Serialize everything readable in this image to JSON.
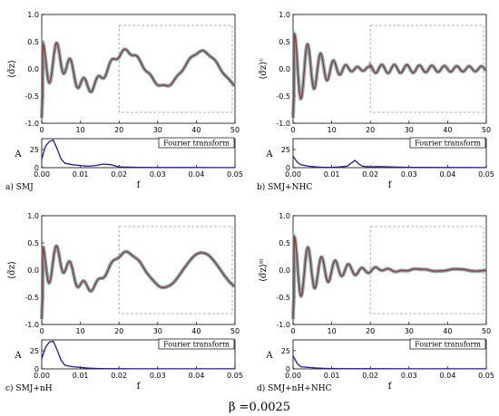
{
  "figure": {
    "beta_label": "β =0.0025",
    "fourier_label": "Fourier transform"
  },
  "chart_data": [
    {
      "type": "line",
      "caption": "a) SMJ",
      "ylabel": "⟨σ̃z⟩",
      "xlabel": "",
      "xlim": [
        0,
        50
      ],
      "ylim": [
        -1.0,
        1.0
      ],
      "xticks": [
        "0",
        "10",
        "20",
        "30",
        "40",
        "50"
      ],
      "yticks": [
        "-1.0",
        "-0.5",
        "0.0",
        "0.5",
        "1.0"
      ],
      "zoom_window": {
        "x": [
          20,
          50
        ],
        "y": [
          -0.8,
          0.8
        ]
      },
      "series": [
        {
          "pattern": "sustained",
          "values": []
        }
      ],
      "fourier": {
        "type": "line",
        "xlabel": "f",
        "ylabel": "A",
        "xlim": [
          0,
          0.05
        ],
        "ylim": [
          0,
          40
        ],
        "xticks": [
          "0.00",
          "0.01",
          "0.02",
          "0.03",
          "0.04",
          "0.05"
        ],
        "yticks": [
          "0",
          "25"
        ],
        "x": [
          0,
          0.001,
          0.002,
          0.003,
          0.004,
          0.005,
          0.006,
          0.008,
          0.01,
          0.012,
          0.014,
          0.016,
          0.018,
          0.02,
          0.025,
          0.03,
          0.035,
          0.04,
          0.045,
          0.05
        ],
        "y": [
          12,
          30,
          36,
          38,
          26,
          12,
          6,
          4,
          3,
          2,
          3,
          5,
          4,
          1,
          0.5,
          0.3,
          0.2,
          0.2,
          0.1,
          0.1
        ]
      }
    },
    {
      "type": "line",
      "caption": "b) SMJ+NHC",
      "ylabel": "⟨σ̃z⟩ᶜ",
      "xlabel": "",
      "xlim": [
        0,
        50
      ],
      "ylim": [
        -1.0,
        1.0
      ],
      "xticks": [
        "0",
        "10",
        "20",
        "30",
        "40",
        "50"
      ],
      "yticks": [
        "-1.0",
        "-0.5",
        "0.0",
        "0.5",
        "1.0"
      ],
      "zoom_window": {
        "x": [
          20,
          50
        ],
        "y": [
          -0.8,
          0.8
        ]
      },
      "series": [
        {
          "pattern": "fast_decay",
          "values": []
        }
      ],
      "fourier": {
        "type": "line",
        "xlabel": "f",
        "ylabel": "A",
        "xlim": [
          0,
          0.05
        ],
        "ylim": [
          0,
          40
        ],
        "xticks": [
          "0.00",
          "0.01",
          "0.02",
          "0.03",
          "0.04",
          "0.05"
        ],
        "yticks": [
          "0",
          "25"
        ],
        "x": [
          0,
          0.001,
          0.002,
          0.004,
          0.006,
          0.008,
          0.01,
          0.012,
          0.014,
          0.015,
          0.016,
          0.017,
          0.018,
          0.02,
          0.022,
          0.025,
          0.03,
          0.04,
          0.05
        ],
        "y": [
          16,
          8,
          4,
          2,
          1,
          0.5,
          0.5,
          1,
          2,
          6,
          10,
          5,
          2,
          1,
          1.5,
          1,
          0.5,
          0.2,
          0.1
        ]
      }
    },
    {
      "type": "line",
      "caption": "c) SMJ+nH",
      "ylabel": "⟨σ̃z⟩",
      "xlabel": "",
      "xlim": [
        0,
        50
      ],
      "ylim": [
        -1.0,
        1.0
      ],
      "xticks": [
        "0",
        "10",
        "20",
        "30",
        "40",
        "50"
      ],
      "yticks": [
        "-1.0",
        "-0.5",
        "0.0",
        "0.5",
        "1.0"
      ],
      "zoom_window": {
        "x": [
          20,
          50
        ],
        "y": [
          -0.8,
          0.8
        ]
      },
      "series": [
        {
          "pattern": "smooth_sine",
          "values": []
        }
      ],
      "fourier": {
        "type": "line",
        "xlabel": "f",
        "ylabel": "A",
        "xlim": [
          0,
          0.05
        ],
        "ylim": [
          0,
          40
        ],
        "xticks": [
          "0.00",
          "0.01",
          "0.02",
          "0.03",
          "0.04",
          "0.05"
        ],
        "yticks": [
          "0",
          "25"
        ],
        "x": [
          0,
          0.001,
          0.002,
          0.003,
          0.004,
          0.005,
          0.006,
          0.008,
          0.01,
          0.012,
          0.015,
          0.018,
          0.02,
          0.025,
          0.03,
          0.04,
          0.05
        ],
        "y": [
          14,
          30,
          37,
          38,
          26,
          12,
          5,
          3,
          2,
          1,
          0.5,
          0.3,
          0.2,
          0.1,
          0.1,
          0.1,
          0.1
        ]
      }
    },
    {
      "type": "line",
      "caption": "d) SMJ+nH+NHC",
      "ylabel": "⟨σ̃z⟩ᵐ",
      "xlabel": "",
      "xlim": [
        0,
        50
      ],
      "ylim": [
        -1.0,
        1.0
      ],
      "xticks": [
        "0",
        "10",
        "20",
        "30",
        "40",
        "50"
      ],
      "yticks": [
        "-1.0",
        "-0.5",
        "0.0",
        "0.5",
        "1.0"
      ],
      "zoom_window": {
        "x": [
          20,
          50
        ],
        "y": [
          -0.8,
          0.8
        ]
      },
      "series": [
        {
          "pattern": "slow_decay",
          "values": []
        }
      ],
      "fourier": {
        "type": "line",
        "xlabel": "f",
        "ylabel": "A",
        "xlim": [
          0,
          0.05
        ],
        "ylim": [
          0,
          40
        ],
        "xticks": [
          "0.00",
          "0.01",
          "0.02",
          "0.03",
          "0.04",
          "0.05"
        ],
        "yticks": [
          "0",
          "25"
        ],
        "x": [
          0,
          0.001,
          0.002,
          0.004,
          0.006,
          0.008,
          0.01,
          0.015,
          0.02,
          0.03,
          0.04,
          0.05
        ],
        "y": [
          18,
          8,
          3,
          2,
          1.2,
          0.8,
          0.5,
          0.3,
          0.2,
          0.1,
          0.1,
          0.1
        ]
      }
    }
  ]
}
